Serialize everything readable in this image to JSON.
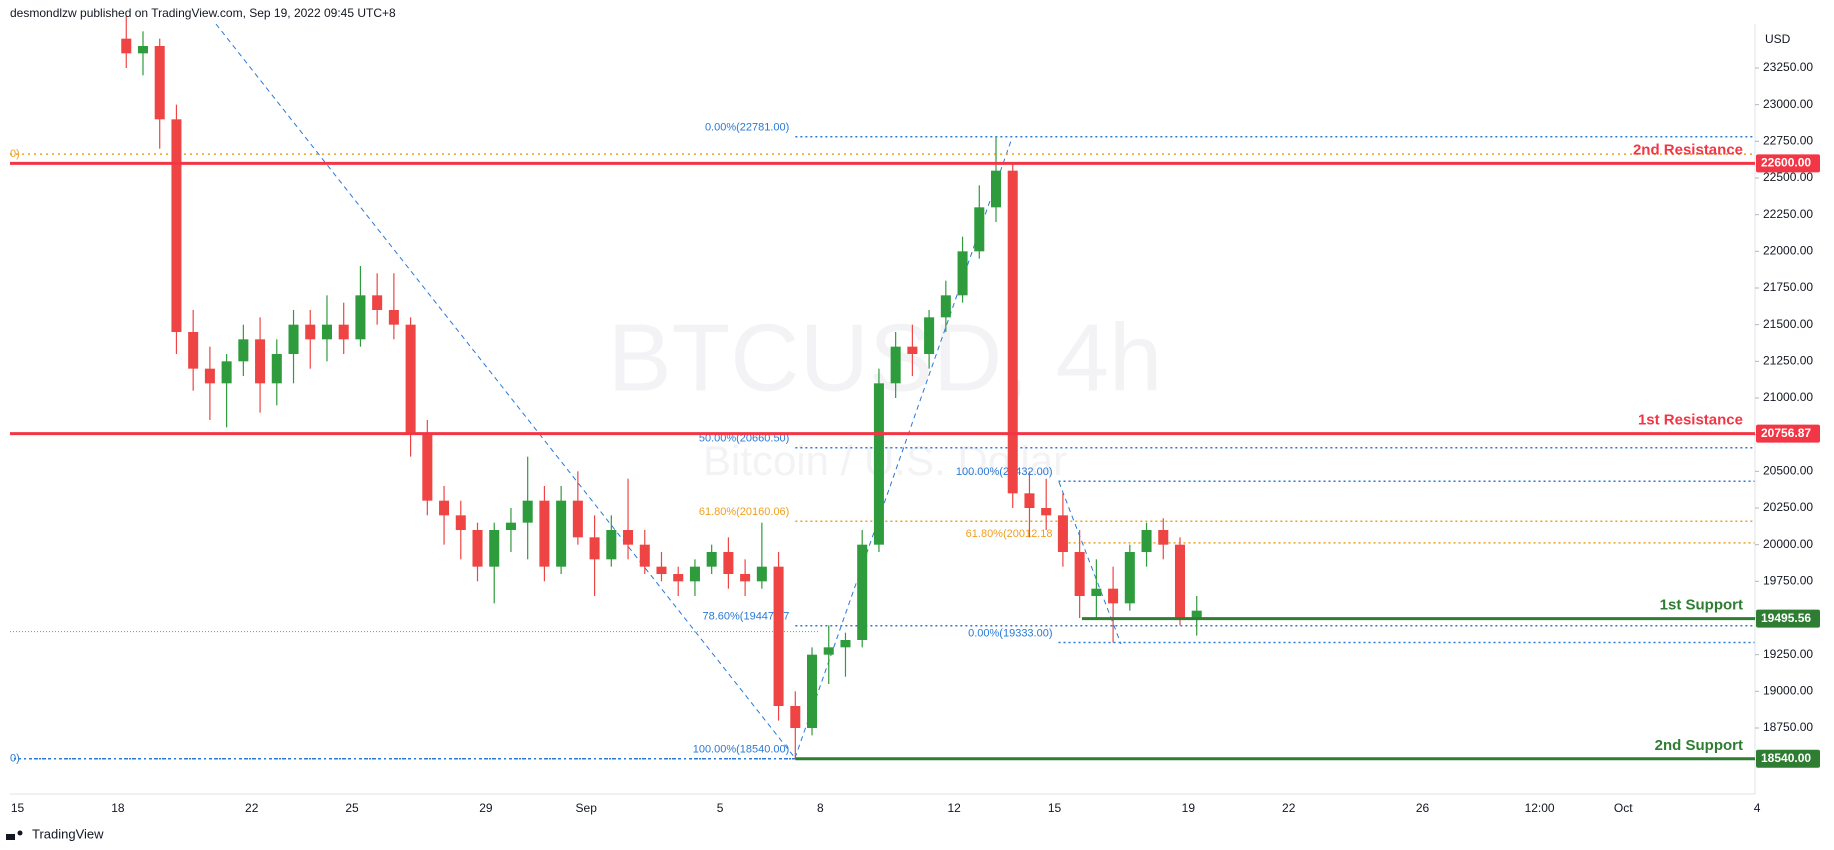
{
  "header": {
    "text": "desmondlzw published on TradingView.com, Sep 19, 2022 09:45 UTC+8"
  },
  "footer": {
    "logo_text": "TradingView"
  },
  "chart_data": {
    "type": "candlestick",
    "title": "BTCUSD, 4h",
    "subtitle": "Bitcoin / U.S. Dollar",
    "currency": "USD",
    "up_color": "#2e9b3c",
    "down_color": "#ef4444",
    "candles": [
      [
        23450,
        23600,
        23250,
        23350
      ],
      [
        23350,
        23500,
        23200,
        23400
      ],
      [
        23400,
        23450,
        22700,
        22900
      ],
      [
        22900,
        23000,
        21300,
        21450
      ],
      [
        21450,
        21600,
        21050,
        21200
      ],
      [
        21200,
        21350,
        20850,
        21100
      ],
      [
        21100,
        21300,
        20800,
        21250
      ],
      [
        21250,
        21500,
        21150,
        21400
      ],
      [
        21400,
        21550,
        20900,
        21100
      ],
      [
        21100,
        21400,
        20950,
        21300
      ],
      [
        21300,
        21600,
        21100,
        21500
      ],
      [
        21500,
        21600,
        21200,
        21400
      ],
      [
        21400,
        21700,
        21250,
        21500
      ],
      [
        21500,
        21650,
        21300,
        21400
      ],
      [
        21400,
        21900,
        21350,
        21700
      ],
      [
        21700,
        21850,
        21500,
        21600
      ],
      [
        21600,
        21850,
        21400,
        21500
      ],
      [
        21500,
        21550,
        20600,
        20750
      ],
      [
        20750,
        20850,
        20200,
        20300
      ],
      [
        20300,
        20400,
        20000,
        20200
      ],
      [
        20200,
        20300,
        19900,
        20100
      ],
      [
        20100,
        20150,
        19750,
        19850
      ],
      [
        19850,
        20150,
        19600,
        20100
      ],
      [
        20100,
        20250,
        19950,
        20150
      ],
      [
        20150,
        20600,
        19900,
        20300
      ],
      [
        20300,
        20400,
        19750,
        19850
      ],
      [
        19850,
        20400,
        19800,
        20300
      ],
      [
        20300,
        20500,
        20000,
        20050
      ],
      [
        20050,
        20200,
        19650,
        19900
      ],
      [
        19900,
        20200,
        19850,
        20100
      ],
      [
        20100,
        20450,
        19900,
        20000
      ],
      [
        20000,
        20100,
        19800,
        19850
      ],
      [
        19850,
        19950,
        19750,
        19800
      ],
      [
        19800,
        19850,
        19650,
        19750
      ],
      [
        19750,
        19900,
        19650,
        19850
      ],
      [
        19850,
        20000,
        19800,
        19950
      ],
      [
        19950,
        20050,
        19700,
        19800
      ],
      [
        19800,
        19900,
        19650,
        19750
      ],
      [
        19750,
        20150,
        19700,
        19850
      ],
      [
        19850,
        19950,
        18800,
        18900
      ],
      [
        18900,
        19000,
        18540,
        18750
      ],
      [
        18750,
        19300,
        18700,
        19250
      ],
      [
        19250,
        19450,
        19050,
        19300
      ],
      [
        19300,
        19400,
        19100,
        19350
      ],
      [
        19350,
        20100,
        19300,
        20000
      ],
      [
        20000,
        21200,
        19950,
        21100
      ],
      [
        21100,
        21450,
        21000,
        21350
      ],
      [
        21350,
        21500,
        21150,
        21300
      ],
      [
        21300,
        21600,
        21200,
        21550
      ],
      [
        21550,
        21800,
        21450,
        21700
      ],
      [
        21700,
        22100,
        21650,
        22000
      ],
      [
        22000,
        22450,
        21950,
        22300
      ],
      [
        22300,
        22781,
        22200,
        22550
      ],
      [
        22550,
        22600,
        20250,
        20350
      ],
      [
        20350,
        20500,
        20050,
        20250
      ],
      [
        20250,
        20450,
        20100,
        20200
      ],
      [
        20200,
        20350,
        19850,
        19950
      ],
      [
        19950,
        20100,
        19500,
        19650
      ],
      [
        19650,
        19900,
        19500,
        19700
      ],
      [
        19700,
        19850,
        19333,
        19600
      ],
      [
        19600,
        20000,
        19550,
        19950
      ],
      [
        19950,
        20150,
        19850,
        20100
      ],
      [
        20100,
        20180,
        19900,
        20000
      ],
      [
        20000,
        20050,
        19450,
        19500
      ],
      [
        19500,
        19650,
        19380,
        19550
      ]
    ],
    "ylim": [
      18300,
      23550
    ],
    "yticks": [
      {
        "value": 18750,
        "label": "18750.00"
      },
      {
        "value": 19000,
        "label": "19000.00"
      },
      {
        "value": 19250,
        "label": "19250.00"
      },
      {
        "value": 19500,
        "label": "19500.00"
      },
      {
        "value": 19750,
        "label": "19750.00"
      },
      {
        "value": 20000,
        "label": "20000.00"
      },
      {
        "value": 20250,
        "label": "20250.00"
      },
      {
        "value": 20500,
        "label": "20500.00"
      },
      {
        "value": 20750,
        "label": "20750.00"
      },
      {
        "value": 21000,
        "label": "21000.00"
      },
      {
        "value": 21250,
        "label": "21250.00"
      },
      {
        "value": 21500,
        "label": "21500.00"
      },
      {
        "value": 21750,
        "label": "21750.00"
      },
      {
        "value": 22000,
        "label": "22000.00"
      },
      {
        "value": 22250,
        "label": "22250.00"
      },
      {
        "value": 22500,
        "label": "22500.00"
      },
      {
        "value": 22750,
        "label": "22750.00"
      },
      {
        "value": 23000,
        "label": "23000.00"
      },
      {
        "value": 23250,
        "label": "23250.00"
      }
    ],
    "time_labels": [
      "15",
      "18",
      "22",
      "25",
      "29",
      "Sep",
      "5",
      "8",
      "12",
      "15",
      "19",
      "22",
      "26",
      "12:00",
      "Oct",
      "4"
    ],
    "levels": [
      {
        "name": "2nd Resistance",
        "value": 22600,
        "label": "22600.00",
        "color": "#f23645"
      },
      {
        "name": "1st Resistance",
        "value": 20756.87,
        "label": "20756.87",
        "color": "#f23645"
      },
      {
        "name": "1st Support",
        "value": 19495.56,
        "label": "19495.56",
        "color": "#2e7d32"
      },
      {
        "name": "2nd Support",
        "value": 18540,
        "label": "18540.00",
        "color": "#2e7d32"
      }
    ],
    "fib_levels": [
      {
        "label": "0.00%(22781.00)",
        "value": 22781,
        "color": "#2979d6"
      },
      {
        "label": "50.00%(20660.50)",
        "value": 20660.5,
        "color": "#2979d6"
      },
      {
        "label": "61.80%(20160.06)",
        "value": 20160.06,
        "color": "#f0a020"
      },
      {
        "label": "78.60%(19447.57",
        "value": 19447.57,
        "color": "#2979d6"
      },
      {
        "label": "100.00%(18540.00)",
        "value": 18540,
        "color": "#2979d6"
      },
      {
        "label": "100.00%(20432.00)",
        "value": 20432,
        "color": "#2979d6"
      },
      {
        "label": "61.80%(20012.18",
        "value": 20012.18,
        "color": "#f0a020"
      },
      {
        "label": "0.00%(19333.00)",
        "value": 19333,
        "color": "#2979d6"
      }
    ],
    "edge_lines": [
      {
        "label": "0)",
        "value": 22663,
        "color": "#f0a020"
      },
      {
        "label": "0)",
        "value": 18540,
        "color": "#2979d6"
      }
    ],
    "guide_line": {
      "value": 19407,
      "color": "#4caf50"
    }
  }
}
